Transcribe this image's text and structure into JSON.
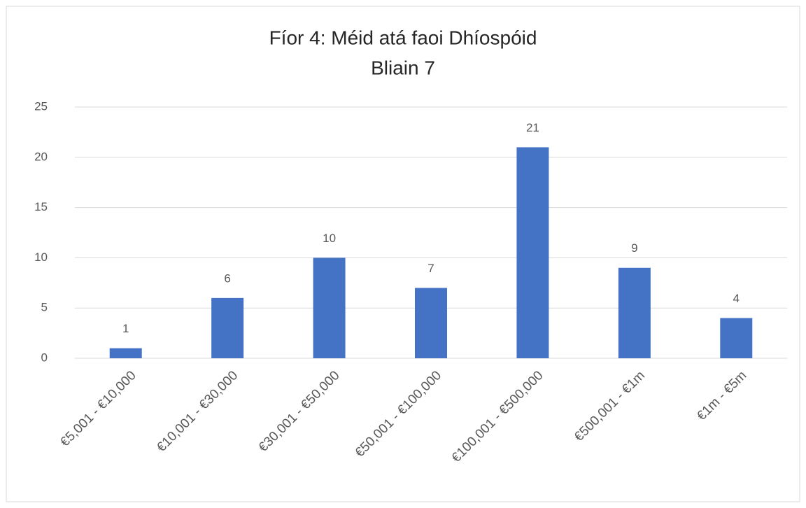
{
  "chart_data": {
    "type": "bar",
    "title": "Fíor 4: Méid atá faoi Dhíospóid",
    "subtitle": "Bliain 7",
    "categories": [
      "€5,001 - €10,000",
      "€10,001 - €30,000",
      "€30,001 - €50,000",
      "€50,001 - €100,000",
      "€100,001 - €500,000",
      "€500,001 - €1m",
      "€1m - €5m"
    ],
    "values": [
      1,
      6,
      10,
      7,
      21,
      9,
      4
    ],
    "color": "#4472c4",
    "ylim": [
      0,
      25
    ],
    "yticks": [
      0,
      5,
      10,
      15,
      20,
      25
    ],
    "grid": true
  }
}
